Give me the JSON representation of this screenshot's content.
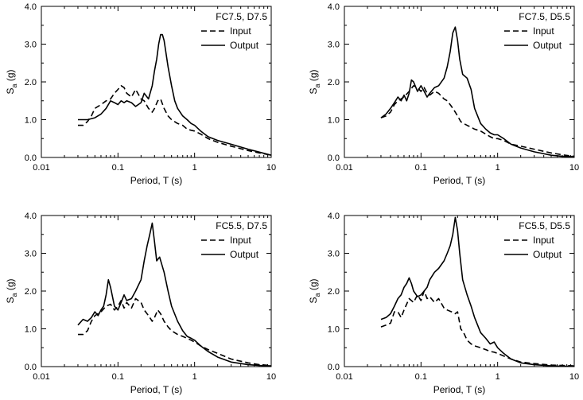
{
  "chart_data": [
    {
      "type": "line",
      "legend_title": "FC7.5, D7.5",
      "xlabel": "Period, T (s)",
      "ylabel": "S",
      "ylabel_sub": "a",
      "ylabel_unit": " (g)",
      "xscale": "log",
      "xlim": [
        0.01,
        10
      ],
      "ylim": [
        0,
        4
      ],
      "xticks": [
        "0.01",
        "0.1",
        "1",
        "10"
      ],
      "yticks": [
        "0.0",
        "1.0",
        "2.0",
        "3.0",
        "4.0"
      ],
      "legend_position": "top-right",
      "series": [
        {
          "name": "Input",
          "style": "dashed",
          "x": [
            0.03,
            0.035,
            0.04,
            0.045,
            0.05,
            0.06,
            0.07,
            0.08,
            0.09,
            0.1,
            0.11,
            0.12,
            0.13,
            0.15,
            0.17,
            0.2,
            0.22,
            0.25,
            0.28,
            0.3,
            0.33,
            0.36,
            0.4,
            0.45,
            0.5,
            0.6,
            0.7,
            0.8,
            0.9,
            1,
            1.2,
            1.5,
            2,
            3,
            5,
            7,
            10
          ],
          "y": [
            0.85,
            0.85,
            0.95,
            1.1,
            1.3,
            1.4,
            1.5,
            1.55,
            1.7,
            1.8,
            1.9,
            1.85,
            1.7,
            1.6,
            1.8,
            1.55,
            1.5,
            1.3,
            1.2,
            1.3,
            1.5,
            1.55,
            1.3,
            1.1,
            1.0,
            0.9,
            0.85,
            0.75,
            0.72,
            0.7,
            0.62,
            0.5,
            0.4,
            0.3,
            0.18,
            0.12,
            0.06
          ]
        },
        {
          "name": "Output",
          "style": "solid",
          "x": [
            0.03,
            0.035,
            0.04,
            0.05,
            0.06,
            0.07,
            0.08,
            0.09,
            0.1,
            0.11,
            0.12,
            0.13,
            0.15,
            0.17,
            0.2,
            0.22,
            0.25,
            0.28,
            0.3,
            0.32,
            0.34,
            0.36,
            0.38,
            0.4,
            0.45,
            0.5,
            0.55,
            0.6,
            0.7,
            0.8,
            0.9,
            1,
            1.2,
            1.5,
            2,
            3,
            5,
            7,
            10
          ],
          "y": [
            1.0,
            1.0,
            1.0,
            1.05,
            1.15,
            1.3,
            1.5,
            1.45,
            1.4,
            1.5,
            1.45,
            1.5,
            1.45,
            1.35,
            1.45,
            1.7,
            1.55,
            1.9,
            2.3,
            2.6,
            3.0,
            3.25,
            3.25,
            3.1,
            2.4,
            1.9,
            1.5,
            1.3,
            1.1,
            1.0,
            0.9,
            0.85,
            0.7,
            0.55,
            0.45,
            0.35,
            0.22,
            0.14,
            0.06
          ]
        }
      ]
    },
    {
      "type": "line",
      "legend_title": "FC7.5, D5.5",
      "xlabel": "Period, T (s)",
      "ylabel": "S",
      "ylabel_sub": "a",
      "ylabel_unit": " (g)",
      "xscale": "log",
      "xlim": [
        0.01,
        10
      ],
      "ylim": [
        0,
        4
      ],
      "xticks": [
        "0.01",
        "0.1",
        "1",
        "10"
      ],
      "yticks": [
        "0.0",
        "1.0",
        "2.0",
        "3.0",
        "4.0"
      ],
      "legend_position": "top-right",
      "series": [
        {
          "name": "Input",
          "style": "dashed",
          "x": [
            0.03,
            0.035,
            0.04,
            0.045,
            0.05,
            0.06,
            0.07,
            0.08,
            0.09,
            0.1,
            0.11,
            0.12,
            0.13,
            0.15,
            0.17,
            0.2,
            0.22,
            0.25,
            0.28,
            0.3,
            0.33,
            0.36,
            0.4,
            0.45,
            0.5,
            0.6,
            0.7,
            0.8,
            0.9,
            1,
            1.2,
            1.5,
            2,
            3,
            5,
            7,
            10
          ],
          "y": [
            1.05,
            1.1,
            1.2,
            1.4,
            1.5,
            1.6,
            1.75,
            1.9,
            1.85,
            1.75,
            1.85,
            1.7,
            1.65,
            1.75,
            1.7,
            1.55,
            1.5,
            1.35,
            1.2,
            1.1,
            0.95,
            0.9,
            0.85,
            0.8,
            0.75,
            0.7,
            0.62,
            0.55,
            0.5,
            0.5,
            0.45,
            0.35,
            0.3,
            0.22,
            0.12,
            0.07,
            0.03
          ]
        },
        {
          "name": "Output",
          "style": "solid",
          "x": [
            0.03,
            0.035,
            0.04,
            0.045,
            0.05,
            0.055,
            0.06,
            0.065,
            0.07,
            0.075,
            0.08,
            0.09,
            0.1,
            0.11,
            0.12,
            0.13,
            0.15,
            0.17,
            0.2,
            0.22,
            0.24,
            0.26,
            0.28,
            0.3,
            0.32,
            0.35,
            0.4,
            0.45,
            0.5,
            0.6,
            0.7,
            0.8,
            0.9,
            1,
            1.2,
            1.5,
            2,
            3,
            5,
            7,
            10
          ],
          "y": [
            1.05,
            1.15,
            1.3,
            1.45,
            1.6,
            1.5,
            1.65,
            1.5,
            1.7,
            2.05,
            2.0,
            1.75,
            1.9,
            1.75,
            1.6,
            1.7,
            1.85,
            1.9,
            2.1,
            2.4,
            2.8,
            3.3,
            3.45,
            3.1,
            2.6,
            2.2,
            2.1,
            1.8,
            1.3,
            0.9,
            0.75,
            0.65,
            0.6,
            0.6,
            0.5,
            0.35,
            0.25,
            0.15,
            0.06,
            0.03,
            0.02
          ]
        }
      ]
    },
    {
      "type": "line",
      "legend_title": "FC5.5, D7.5",
      "xlabel": "Period, T (s)",
      "ylabel": "S",
      "ylabel_sub": "a",
      "ylabel_unit": " (g)",
      "xscale": "log",
      "xlim": [
        0.01,
        10
      ],
      "ylim": [
        0,
        4
      ],
      "xticks": [
        "0.01",
        "0.1",
        "1",
        "10"
      ],
      "yticks": [
        "0.0",
        "1.0",
        "2.0",
        "3.0",
        "4.0"
      ],
      "legend_position": "top-right",
      "series": [
        {
          "name": "Input",
          "style": "dashed",
          "x": [
            0.03,
            0.035,
            0.04,
            0.045,
            0.05,
            0.06,
            0.07,
            0.08,
            0.09,
            0.1,
            0.11,
            0.12,
            0.13,
            0.15,
            0.17,
            0.2,
            0.22,
            0.25,
            0.28,
            0.3,
            0.33,
            0.36,
            0.4,
            0.45,
            0.5,
            0.6,
            0.7,
            0.8,
            0.9,
            1,
            1.2,
            1.5,
            2,
            3,
            5,
            7,
            10
          ],
          "y": [
            0.85,
            0.85,
            0.95,
            1.2,
            1.35,
            1.45,
            1.6,
            1.65,
            1.5,
            1.6,
            1.75,
            1.55,
            1.7,
            1.55,
            1.8,
            1.7,
            1.5,
            1.35,
            1.2,
            1.3,
            1.5,
            1.4,
            1.2,
            1.05,
            0.95,
            0.85,
            0.8,
            0.75,
            0.7,
            0.65,
            0.55,
            0.45,
            0.35,
            0.2,
            0.1,
            0.05,
            0.03
          ]
        },
        {
          "name": "Output",
          "style": "solid",
          "x": [
            0.03,
            0.035,
            0.04,
            0.045,
            0.05,
            0.055,
            0.06,
            0.065,
            0.07,
            0.075,
            0.08,
            0.09,
            0.1,
            0.11,
            0.12,
            0.13,
            0.15,
            0.17,
            0.2,
            0.22,
            0.24,
            0.26,
            0.28,
            0.3,
            0.32,
            0.35,
            0.4,
            0.45,
            0.5,
            0.6,
            0.7,
            0.8,
            0.9,
            1,
            1.2,
            1.5,
            2,
            3,
            5,
            7,
            10
          ],
          "y": [
            1.1,
            1.25,
            1.2,
            1.3,
            1.45,
            1.35,
            1.5,
            1.6,
            1.9,
            2.3,
            2.1,
            1.6,
            1.5,
            1.7,
            1.9,
            1.75,
            1.8,
            2.0,
            2.3,
            2.8,
            3.2,
            3.5,
            3.8,
            3.3,
            2.8,
            2.9,
            2.5,
            2.0,
            1.6,
            1.2,
            0.95,
            0.8,
            0.75,
            0.7,
            0.55,
            0.4,
            0.25,
            0.12,
            0.05,
            0.03,
            0.02
          ]
        }
      ]
    },
    {
      "type": "line",
      "legend_title": "FC5.5, D5.5",
      "xlabel": "Period, T (s)",
      "ylabel": "S",
      "ylabel_sub": "a",
      "ylabel_unit": " (g)",
      "xscale": "log",
      "xlim": [
        0.01,
        10
      ],
      "ylim": [
        0,
        4
      ],
      "xticks": [
        "0.01",
        "0.1",
        "1",
        "10"
      ],
      "yticks": [
        "0.0",
        "1.0",
        "2.0",
        "3.0",
        "4.0"
      ],
      "legend_position": "top-right",
      "series": [
        {
          "name": "Input",
          "style": "dashed",
          "x": [
            0.03,
            0.035,
            0.04,
            0.045,
            0.05,
            0.055,
            0.06,
            0.07,
            0.08,
            0.09,
            0.1,
            0.11,
            0.12,
            0.13,
            0.15,
            0.17,
            0.2,
            0.22,
            0.25,
            0.28,
            0.3,
            0.33,
            0.36,
            0.4,
            0.45,
            0.5,
            0.6,
            0.7,
            0.8,
            0.9,
            1,
            1.2,
            1.5,
            2,
            3,
            5,
            7,
            10
          ],
          "y": [
            1.05,
            1.1,
            1.15,
            1.45,
            1.45,
            1.3,
            1.5,
            1.8,
            1.7,
            1.9,
            1.75,
            2.0,
            1.8,
            1.85,
            1.7,
            1.8,
            1.55,
            1.5,
            1.45,
            1.4,
            1.45,
            1.0,
            0.9,
            0.7,
            0.6,
            0.55,
            0.5,
            0.45,
            0.4,
            0.38,
            0.35,
            0.28,
            0.2,
            0.12,
            0.08,
            0.04,
            0.03,
            0.02
          ]
        },
        {
          "name": "Output",
          "style": "solid",
          "x": [
            0.03,
            0.035,
            0.04,
            0.045,
            0.05,
            0.055,
            0.06,
            0.065,
            0.07,
            0.075,
            0.08,
            0.09,
            0.1,
            0.11,
            0.12,
            0.13,
            0.15,
            0.17,
            0.2,
            0.22,
            0.24,
            0.26,
            0.28,
            0.3,
            0.32,
            0.35,
            0.4,
            0.45,
            0.5,
            0.6,
            0.7,
            0.8,
            0.9,
            1,
            1.2,
            1.5,
            2,
            3,
            5,
            7,
            10
          ],
          "y": [
            1.25,
            1.3,
            1.4,
            1.6,
            1.8,
            1.9,
            2.1,
            2.2,
            2.35,
            2.2,
            2.0,
            1.85,
            1.9,
            2.0,
            2.1,
            2.3,
            2.5,
            2.6,
            2.8,
            3.0,
            3.2,
            3.5,
            3.95,
            3.6,
            3.0,
            2.3,
            1.9,
            1.6,
            1.3,
            0.9,
            0.75,
            0.6,
            0.65,
            0.5,
            0.35,
            0.2,
            0.1,
            0.05,
            0.02,
            0.01,
            0.01
          ]
        }
      ]
    }
  ]
}
